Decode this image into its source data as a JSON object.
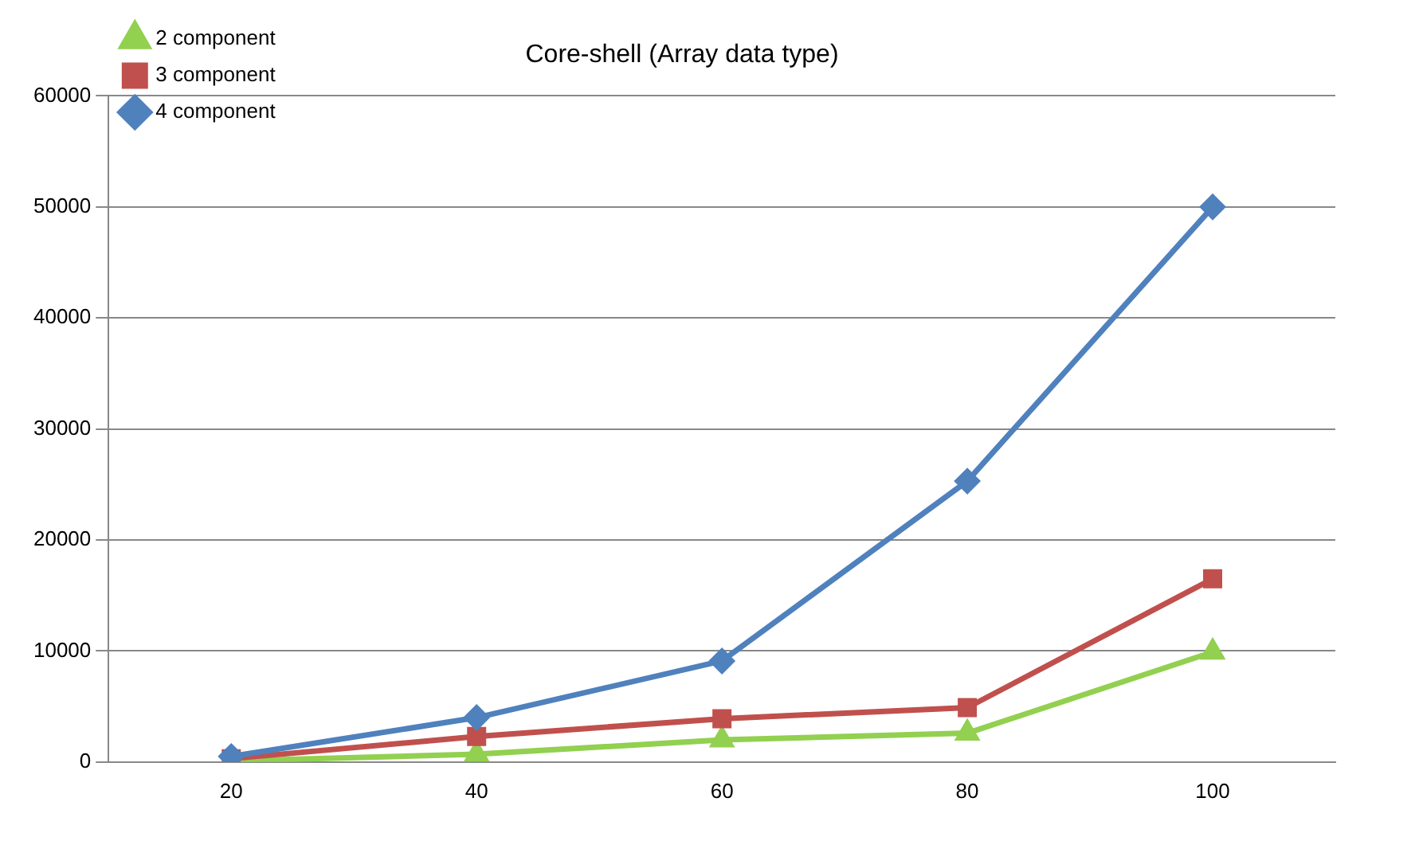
{
  "chart_data": {
    "type": "line",
    "title": "Core-shell (Array data type)",
    "categories": [
      "20",
      "40",
      "60",
      "80",
      "100"
    ],
    "series": [
      {
        "name": "2 component",
        "color": "#92d050",
        "marker": "triangle",
        "values": [
          100,
          700,
          2000,
          2600,
          9900
        ]
      },
      {
        "name": "3 component",
        "color": "#c0504d",
        "marker": "square",
        "values": [
          300,
          2300,
          3900,
          4900,
          16500
        ]
      },
      {
        "name": "4 component",
        "color": "#4f81bd",
        "marker": "diamond",
        "values": [
          500,
          4000,
          9100,
          25300,
          50000
        ]
      }
    ],
    "ylim": [
      0,
      60000
    ],
    "yticks": [
      0,
      10000,
      20000,
      30000,
      40000,
      50000,
      60000
    ],
    "grid": "y",
    "legend": "top left"
  }
}
